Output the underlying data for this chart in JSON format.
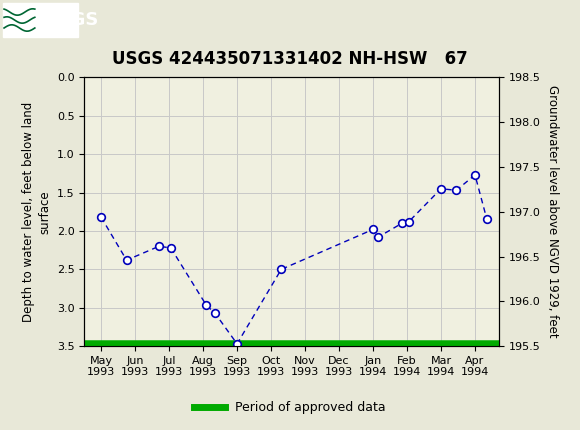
{
  "title": "USGS 424435071331402 NH-HSW   67",
  "x_labels": [
    "May\n1993",
    "Jun\n1993",
    "Jul\n1993",
    "Aug\n1993",
    "Sep\n1993",
    "Oct\n1993",
    "Nov\n1993",
    "Dec\n1993",
    "Jan\n1994",
    "Feb\n1994",
    "Mar\n1994",
    "Apr\n1994"
  ],
  "x_positions": [
    0,
    1,
    2,
    3,
    4,
    5,
    6,
    7,
    8,
    9,
    10,
    11
  ],
  "x_data": [
    0.0,
    0.75,
    1.7,
    2.05,
    3.1,
    3.35,
    4.0,
    5.3,
    8.0,
    8.15,
    8.85,
    9.05,
    10.0,
    10.45,
    11.0,
    11.35
  ],
  "y_depth": [
    1.82,
    2.38,
    2.2,
    2.22,
    2.97,
    3.07,
    3.47,
    2.5,
    1.98,
    2.08,
    1.9,
    1.88,
    1.45,
    1.47,
    1.27,
    1.85
  ],
  "ylim_left": [
    0.0,
    3.5
  ],
  "ylim_right": [
    195.5,
    198.5
  ],
  "ylabel_left": "Depth to water level, feet below land\nsurface",
  "ylabel_right": "Groundwater level above NGVD 1929, feet",
  "yticks_left": [
    0.0,
    0.5,
    1.0,
    1.5,
    2.0,
    2.5,
    3.0,
    3.5
  ],
  "yticks_right": [
    195.5,
    196.0,
    196.5,
    197.0,
    197.5,
    198.0,
    198.5
  ],
  "line_color": "#0000bb",
  "marker_face": "#ffffff",
  "marker_edge": "#0000bb",
  "grid_color": "#c8c8c8",
  "plot_bg": "#f0f0e0",
  "fig_bg": "#e8e8d8",
  "header_color": "#006633",
  "legend_label": "Period of approved data",
  "legend_color": "#00aa00",
  "green_bar_color": "#00aa00",
  "title_fontsize": 12,
  "axis_label_fontsize": 8.5,
  "tick_fontsize": 8,
  "legend_fontsize": 9
}
